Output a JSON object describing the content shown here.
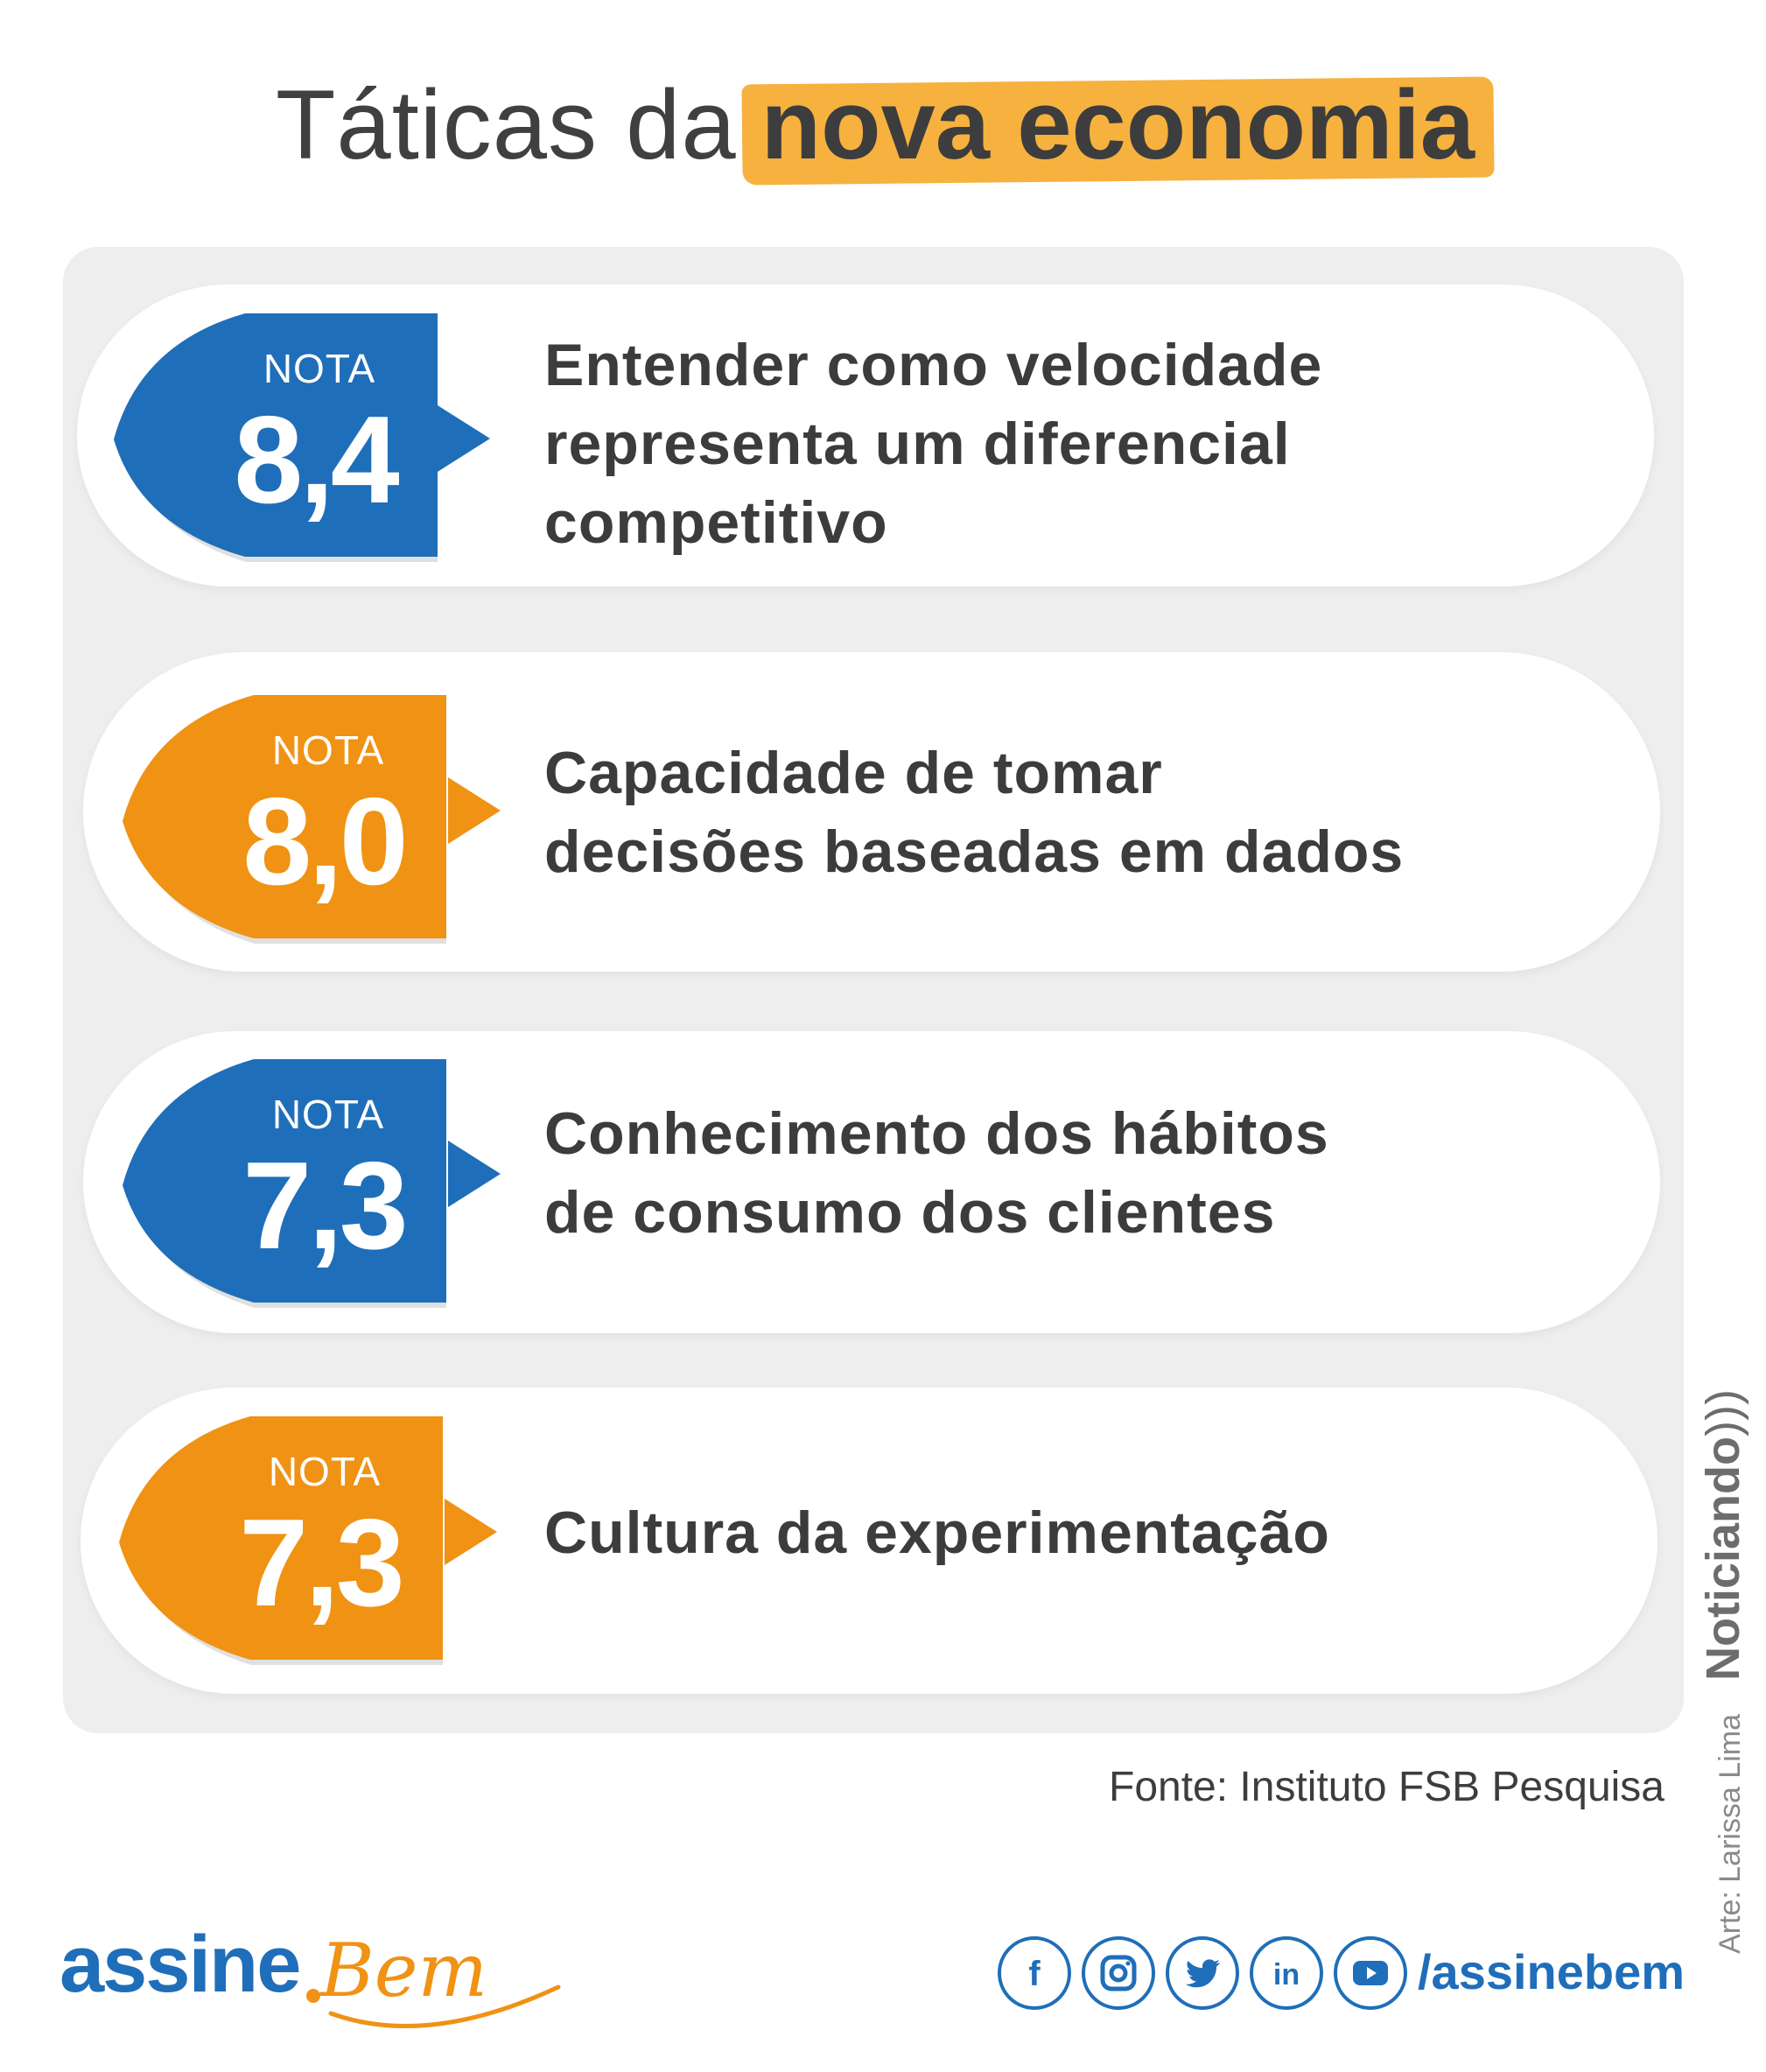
{
  "title": {
    "part1": "Táticas da",
    "part2": "nova economia"
  },
  "items": [
    {
      "label": "NOTA",
      "score": "8,4",
      "color": "#1f6eb9",
      "text": [
        "Entender como velocidade",
        "representa um diferencial",
        "competitivo"
      ]
    },
    {
      "label": "NOTA",
      "score": "8,0",
      "color": "#f09214",
      "text": [
        "Capacidade de tomar",
        "decisões baseadas em dados"
      ]
    },
    {
      "label": "NOTA",
      "score": "7,3",
      "color": "#1f6eb9",
      "text": [
        "Conhecimento dos hábitos",
        "de consumo dos clientes"
      ]
    },
    {
      "label": "NOTA",
      "score": "7,3",
      "color": "#f09214",
      "text": [
        "Cultura da experimentação"
      ]
    }
  ],
  "source": "Fonte: Instituto FSB Pesquisa",
  "credit": "Arte: Larissa Lima",
  "watermark": "Noticiando",
  "brand": {
    "word1": "assine",
    "word2": "Bem"
  },
  "social": {
    "icons": [
      "facebook-icon",
      "instagram-icon",
      "twitter-icon",
      "linkedin-icon",
      "youtube-icon"
    ],
    "handle": "/assinebem"
  },
  "colors": {
    "blue": "#1f6eb9",
    "orange": "#f09214",
    "highlight": "#f7b13f"
  }
}
